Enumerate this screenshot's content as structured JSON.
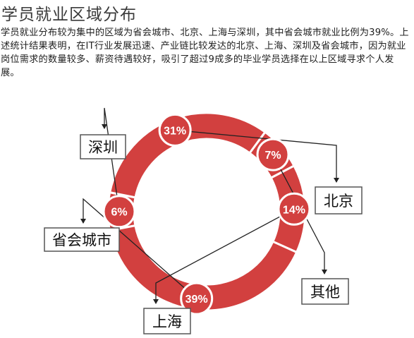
{
  "title": "学员就业区域分布",
  "description": "学员就业分布较为集中的区域为省会城市、北京、上海与深圳，其中省会城市就业比例为39%。上述统计结果表明，在IT行业发展迅速、产业链比较发达的北京、上海、深圳及省会城市，因为就业岗位需求的数量较多、薪资待遇较好，吸引了超过9成多的毕业学员选择在以上区域寻求个人发展。",
  "colors": {
    "ring": "#d2403f",
    "separator": "#ffffff",
    "label_border": "#555555"
  },
  "chart_data": {
    "type": "pie",
    "title": "学员就业区域分布",
    "slices": [
      {
        "label": "深圳",
        "value": 6,
        "value_label": "6%"
      },
      {
        "label": "北京",
        "value": 31,
        "value_label": "31%"
      },
      {
        "label": "其他",
        "value": 7,
        "value_label": "7%"
      },
      {
        "label": "上海",
        "value": 14,
        "value_label": "14%"
      },
      {
        "label": "省会城市",
        "value": 39,
        "value_label": "39%"
      }
    ]
  }
}
